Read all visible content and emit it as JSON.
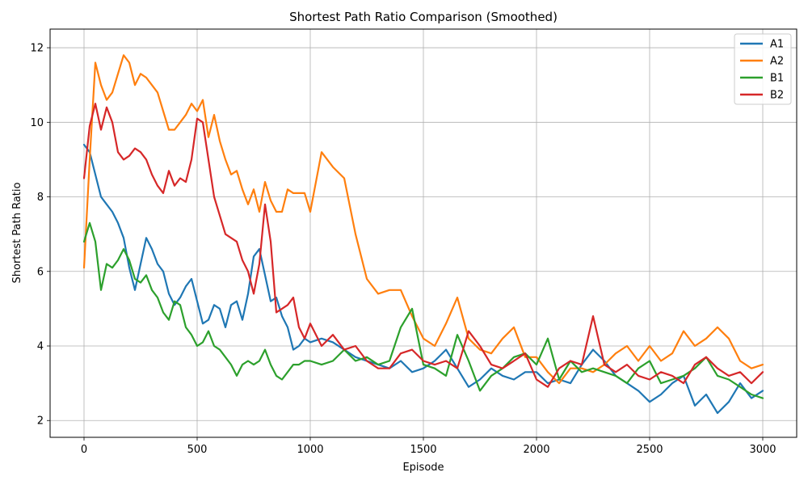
{
  "chart_data": {
    "type": "line",
    "title": "Shortest Path Ratio Comparison (Smoothed)",
    "xlabel": "Episode",
    "ylabel": "Shortest Path Ratio",
    "xlim": [
      -150,
      3150
    ],
    "ylim": [
      1.55,
      12.5
    ],
    "xticks": [
      0,
      500,
      1000,
      1500,
      2000,
      2500,
      3000
    ],
    "yticks": [
      2,
      4,
      6,
      8,
      10,
      12
    ],
    "grid": true,
    "legend_position": "top-right",
    "series": [
      {
        "name": "A1",
        "color": "#1f77b4",
        "x": [
          0,
          25,
          50,
          75,
          100,
          125,
          150,
          175,
          200,
          225,
          250,
          275,
          300,
          325,
          350,
          375,
          400,
          425,
          450,
          475,
          500,
          525,
          550,
          575,
          600,
          625,
          650,
          675,
          700,
          725,
          750,
          775,
          800,
          825,
          850,
          875,
          900,
          925,
          950,
          975,
          1000,
          1050,
          1100,
          1150,
          1200,
          1250,
          1300,
          1350,
          1400,
          1450,
          1500,
          1550,
          1600,
          1650,
          1700,
          1750,
          1800,
          1850,
          1900,
          1950,
          2000,
          2050,
          2100,
          2150,
          2200,
          2250,
          2300,
          2350,
          2400,
          2450,
          2500,
          2550,
          2600,
          2650,
          2700,
          2750,
          2800,
          2850,
          2900,
          2950,
          3000
        ],
        "y": [
          9.4,
          9.2,
          8.6,
          8.0,
          7.8,
          7.6,
          7.3,
          6.9,
          6.1,
          5.5,
          6.2,
          6.9,
          6.6,
          6.2,
          6.0,
          5.4,
          5.1,
          5.3,
          5.6,
          5.8,
          5.2,
          4.6,
          4.7,
          5.1,
          5.0,
          4.5,
          5.1,
          5.2,
          4.7,
          5.4,
          6.4,
          6.6,
          5.9,
          5.2,
          5.3,
          4.8,
          4.5,
          3.9,
          4.0,
          4.2,
          4.1,
          4.2,
          4.1,
          3.9,
          3.7,
          3.6,
          3.5,
          3.4,
          3.6,
          3.3,
          3.4,
          3.6,
          3.9,
          3.4,
          2.9,
          3.1,
          3.4,
          3.2,
          3.1,
          3.3,
          3.3,
          3.0,
          3.1,
          3.0,
          3.5,
          3.9,
          3.6,
          3.2,
          3.0,
          2.8,
          2.5,
          2.7,
          3.0,
          3.2,
          2.4,
          2.7,
          2.2,
          2.5,
          3.0,
          2.6,
          2.8
        ]
      },
      {
        "name": "A2",
        "color": "#ff7f0e",
        "x": [
          0,
          25,
          50,
          75,
          100,
          125,
          150,
          175,
          200,
          225,
          250,
          275,
          300,
          325,
          350,
          375,
          400,
          425,
          450,
          475,
          500,
          525,
          550,
          575,
          600,
          625,
          650,
          675,
          700,
          725,
          750,
          775,
          800,
          825,
          850,
          875,
          900,
          925,
          950,
          975,
          1000,
          1050,
          1100,
          1150,
          1200,
          1250,
          1300,
          1350,
          1400,
          1450,
          1500,
          1550,
          1600,
          1650,
          1700,
          1750,
          1800,
          1850,
          1900,
          1950,
          2000,
          2050,
          2100,
          2150,
          2200,
          2250,
          2300,
          2350,
          2400,
          2450,
          2500,
          2550,
          2600,
          2650,
          2700,
          2750,
          2800,
          2850,
          2900,
          2950,
          3000
        ],
        "y": [
          6.1,
          9.0,
          11.6,
          11.0,
          10.6,
          10.8,
          11.3,
          11.8,
          11.6,
          11.0,
          11.3,
          11.2,
          11.0,
          10.8,
          10.3,
          9.8,
          9.8,
          10.0,
          10.2,
          10.5,
          10.3,
          10.6,
          9.6,
          10.2,
          9.5,
          9.0,
          8.6,
          8.7,
          8.2,
          7.8,
          8.2,
          7.6,
          8.4,
          7.9,
          7.6,
          7.6,
          8.2,
          8.1,
          8.1,
          8.1,
          7.6,
          9.2,
          8.8,
          8.5,
          7.0,
          5.8,
          5.4,
          5.5,
          5.5,
          4.8,
          4.2,
          4.0,
          4.6,
          5.3,
          4.2,
          3.9,
          3.8,
          4.2,
          4.5,
          3.7,
          3.7,
          3.3,
          3.0,
          3.4,
          3.4,
          3.3,
          3.5,
          3.8,
          4.0,
          3.6,
          4.0,
          3.6,
          3.8,
          4.4,
          4.0,
          4.2,
          4.5,
          4.2,
          3.6,
          3.4,
          3.5
        ]
      },
      {
        "name": "B1",
        "color": "#2ca02c",
        "x": [
          0,
          25,
          50,
          75,
          100,
          125,
          150,
          175,
          200,
          225,
          250,
          275,
          300,
          325,
          350,
          375,
          400,
          425,
          450,
          475,
          500,
          525,
          550,
          575,
          600,
          625,
          650,
          675,
          700,
          725,
          750,
          775,
          800,
          825,
          850,
          875,
          900,
          925,
          950,
          975,
          1000,
          1050,
          1100,
          1150,
          1200,
          1250,
          1300,
          1350,
          1400,
          1450,
          1500,
          1550,
          1600,
          1650,
          1700,
          1750,
          1800,
          1850,
          1900,
          1950,
          2000,
          2050,
          2100,
          2150,
          2200,
          2250,
          2300,
          2350,
          2400,
          2450,
          2500,
          2550,
          2600,
          2650,
          2700,
          2750,
          2800,
          2850,
          2900,
          2950,
          3000
        ],
        "y": [
          6.8,
          7.3,
          6.8,
          5.5,
          6.2,
          6.1,
          6.3,
          6.6,
          6.3,
          5.8,
          5.7,
          5.9,
          5.5,
          5.3,
          4.9,
          4.7,
          5.2,
          5.1,
          4.5,
          4.3,
          4.0,
          4.1,
          4.4,
          4.0,
          3.9,
          3.7,
          3.5,
          3.2,
          3.5,
          3.6,
          3.5,
          3.6,
          3.9,
          3.5,
          3.2,
          3.1,
          3.3,
          3.5,
          3.5,
          3.6,
          3.6,
          3.5,
          3.6,
          3.9,
          3.6,
          3.7,
          3.5,
          3.6,
          4.5,
          5.0,
          3.5,
          3.4,
          3.2,
          4.3,
          3.6,
          2.8,
          3.2,
          3.4,
          3.7,
          3.8,
          3.5,
          4.2,
          3.1,
          3.6,
          3.3,
          3.4,
          3.3,
          3.2,
          3.0,
          3.4,
          3.6,
          3.0,
          3.1,
          3.2,
          3.4,
          3.7,
          3.2,
          3.1,
          2.9,
          2.7,
          2.6
        ]
      },
      {
        "name": "B2",
        "color": "#d62728",
        "x": [
          0,
          25,
          50,
          75,
          100,
          125,
          150,
          175,
          200,
          225,
          250,
          275,
          300,
          325,
          350,
          375,
          400,
          425,
          450,
          475,
          500,
          525,
          550,
          575,
          600,
          625,
          650,
          675,
          700,
          725,
          750,
          775,
          800,
          825,
          850,
          875,
          900,
          925,
          950,
          975,
          1000,
          1050,
          1100,
          1150,
          1200,
          1250,
          1300,
          1350,
          1400,
          1450,
          1500,
          1550,
          1600,
          1650,
          1700,
          1750,
          1800,
          1850,
          1900,
          1950,
          2000,
          2050,
          2100,
          2150,
          2200,
          2250,
          2300,
          2350,
          2400,
          2450,
          2500,
          2550,
          2600,
          2650,
          2700,
          2750,
          2800,
          2850,
          2900,
          2950,
          3000
        ],
        "y": [
          8.5,
          9.9,
          10.5,
          9.8,
          10.4,
          10.0,
          9.2,
          9.0,
          9.1,
          9.3,
          9.2,
          9.0,
          8.6,
          8.3,
          8.1,
          8.7,
          8.3,
          8.5,
          8.4,
          9.0,
          10.1,
          10.0,
          9.0,
          8.0,
          7.5,
          7.0,
          6.9,
          6.8,
          6.3,
          6.0,
          5.4,
          6.2,
          7.8,
          6.8,
          4.9,
          5.0,
          5.1,
          5.3,
          4.5,
          4.2,
          4.6,
          4.0,
          4.3,
          3.9,
          4.0,
          3.6,
          3.4,
          3.4,
          3.8,
          3.9,
          3.6,
          3.5,
          3.6,
          3.4,
          4.4,
          4.0,
          3.5,
          3.4,
          3.6,
          3.8,
          3.1,
          2.9,
          3.4,
          3.6,
          3.5,
          4.8,
          3.5,
          3.3,
          3.5,
          3.2,
          3.1,
          3.3,
          3.2,
          3.0,
          3.5,
          3.7,
          3.4,
          3.2,
          3.3,
          3.0,
          3.3
        ]
      }
    ]
  }
}
